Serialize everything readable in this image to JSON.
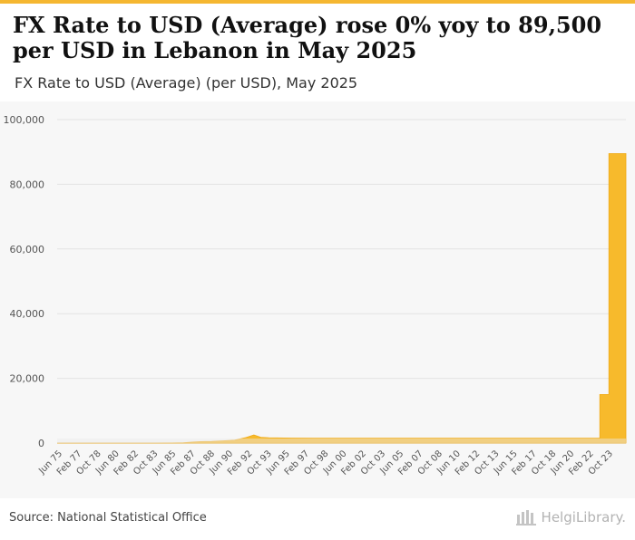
{
  "header": {
    "title": "FX Rate to USD (Average) rose 0% yoy to 89,500 per USD in Lebanon in May 2025",
    "subtitle": "FX Rate to USD (Average) (per USD), May 2025"
  },
  "footer": {
    "source": "Source: National Statistical Office",
    "brand": "HelgiLibrary."
  },
  "colors": {
    "accent": "#f5b731",
    "area_fill": "#f7ba2c",
    "grid": "#e3e3e3"
  },
  "chart_data": {
    "type": "area",
    "title": "FX Rate to USD (Average) rose 0% yoy to 89,500 per USD in Lebanon in May 2025",
    "subtitle": "FX Rate to USD (Average) (per USD), May 2025",
    "xlabel": "",
    "ylabel": "",
    "xlim": [
      1975.4,
      2025.4
    ],
    "ylim": [
      0,
      100000
    ],
    "yticks": [
      0,
      20000,
      40000,
      60000,
      80000,
      100000
    ],
    "ytick_labels": [
      "0",
      "20,000",
      "40,000",
      "60,000",
      "80,000",
      "100,000"
    ],
    "grid": true,
    "xtick_labels": [
      {
        "label": "Jun 75",
        "x": 1975.4
      },
      {
        "label": "Feb 77",
        "x": 1977.1
      },
      {
        "label": "Oct 78",
        "x": 1978.8
      },
      {
        "label": "Jun 80",
        "x": 1980.4
      },
      {
        "label": "Feb 82",
        "x": 1982.1
      },
      {
        "label": "Oct 83",
        "x": 1983.8
      },
      {
        "label": "Jun 85",
        "x": 1985.4
      },
      {
        "label": "Feb 87",
        "x": 1987.1
      },
      {
        "label": "Oct 88",
        "x": 1988.8
      },
      {
        "label": "Jun 90",
        "x": 1990.4
      },
      {
        "label": "Feb 92",
        "x": 1992.1
      },
      {
        "label": "Oct 93",
        "x": 1993.8
      },
      {
        "label": "Jun 95",
        "x": 1995.4
      },
      {
        "label": "Feb 97",
        "x": 1997.1
      },
      {
        "label": "Oct 98",
        "x": 1998.8
      },
      {
        "label": "Jun 00",
        "x": 2000.4
      },
      {
        "label": "Feb 02",
        "x": 2002.1
      },
      {
        "label": "Oct 03",
        "x": 2003.8
      },
      {
        "label": "Jun 05",
        "x": 2005.4
      },
      {
        "label": "Feb 07",
        "x": 2007.1
      },
      {
        "label": "Oct 08",
        "x": 2008.8
      },
      {
        "label": "Jun 10",
        "x": 2010.4
      },
      {
        "label": "Feb 12",
        "x": 2012.1
      },
      {
        "label": "Oct 13",
        "x": 2013.8
      },
      {
        "label": "Jun 15",
        "x": 2015.4
      },
      {
        "label": "Feb 17",
        "x": 2017.1
      },
      {
        "label": "Oct 18",
        "x": 2018.8
      },
      {
        "label": "Jun 20",
        "x": 2020.4
      },
      {
        "label": "Feb 22",
        "x": 2022.1
      },
      {
        "label": "Oct 23",
        "x": 2023.8
      }
    ],
    "series": [
      {
        "name": "FX Rate to USD (Average)",
        "points": [
          [
            1975.4,
            3
          ],
          [
            1982.0,
            4
          ],
          [
            1984.0,
            6
          ],
          [
            1985.5,
            18
          ],
          [
            1986.5,
            90
          ],
          [
            1987.3,
            300
          ],
          [
            1988.0,
            450
          ],
          [
            1989.0,
            500
          ],
          [
            1990.0,
            700
          ],
          [
            1991.0,
            900
          ],
          [
            1992.0,
            1700
          ],
          [
            1992.7,
            2500
          ],
          [
            1993.3,
            1800
          ],
          [
            1994.0,
            1650
          ],
          [
            1996.0,
            1550
          ],
          [
            1998.0,
            1510
          ],
          [
            2022.0,
            1507
          ],
          [
            2023.1,
            1507
          ],
          [
            2023.1,
            15000
          ],
          [
            2023.9,
            15000
          ],
          [
            2023.9,
            89500
          ],
          [
            2025.4,
            89500
          ]
        ]
      }
    ]
  }
}
